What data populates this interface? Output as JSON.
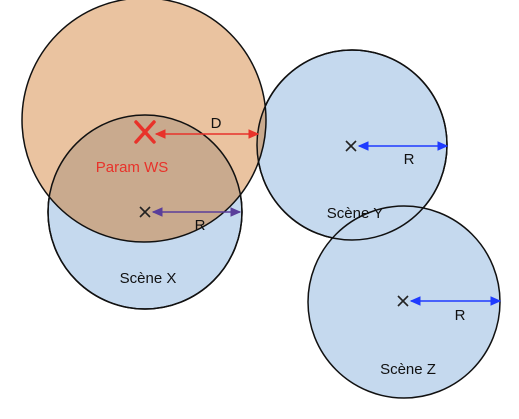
{
  "diagram": {
    "scenes": [
      {
        "id": "x",
        "label": "Scène X",
        "radius_label": "R"
      },
      {
        "id": "y",
        "label": "Scène Y",
        "radius_label": "R"
      },
      {
        "id": "z",
        "label": "Scène Z",
        "radius_label": "R"
      }
    ],
    "param_ws": {
      "label": "Param WS"
    },
    "distance_label": "D",
    "colors": {
      "scene_fill": "#c5d9ee",
      "ws_fill": "#e9c09b",
      "overlap_fill": "#c9aa8e",
      "outline": "#111111",
      "accent": "#e8322a",
      "arrow_blue": "#1f3bff",
      "arrow_purple": "#5a3e9a"
    }
  }
}
